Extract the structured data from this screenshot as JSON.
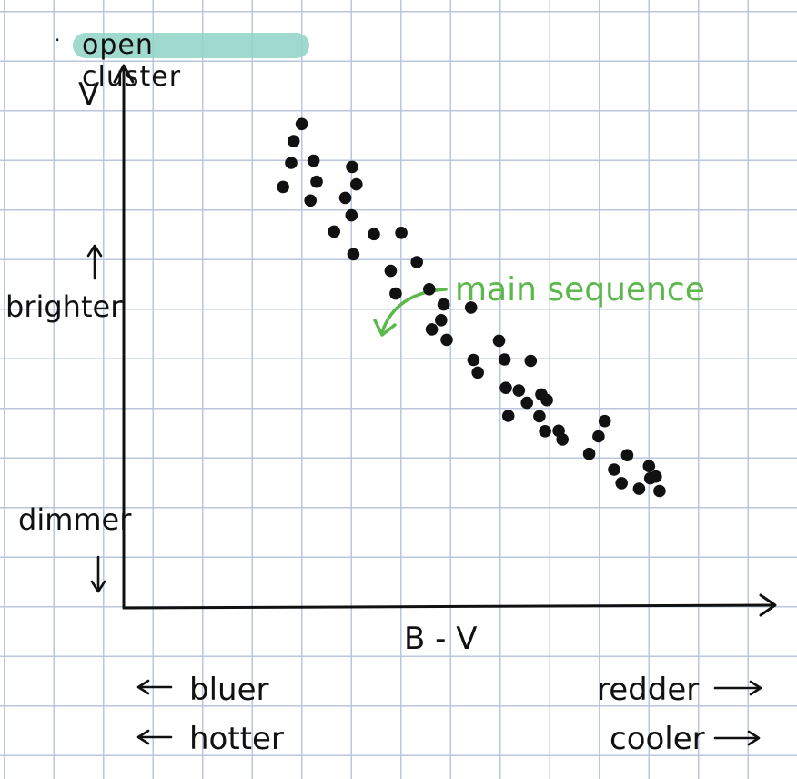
{
  "title_bullet": "·",
  "title": "open cluster",
  "y_axis_label": "V",
  "x_axis_label": "B - V",
  "y_up_label": "brighter",
  "y_down_label": "dimmer",
  "x_left_labels": [
    "bluer",
    "hotter"
  ],
  "x_right_labels": [
    "redder",
    "cooler"
  ],
  "annotation": "main sequence",
  "colors": {
    "highlight": "#8fd3c6",
    "annotation": "#5bb84a",
    "ink": "#111111",
    "grid": "#b9c6de"
  },
  "icons": {
    "up_arrow": "up-arrow-icon",
    "down_arrow": "down-arrow-icon",
    "left_arrow": "left-arrow-icon",
    "right_arrow": "right-arrow-icon"
  },
  "chart_data": {
    "type": "scatter",
    "title": "open cluster",
    "xlabel": "B - V",
    "ylabel": "V",
    "xlim": [
      0,
      100
    ],
    "ylim": [
      0,
      100
    ],
    "y_inverted": true,
    "grid": true,
    "series": [
      {
        "points": [
          [
            28.6,
            3.4
          ],
          [
            27.3,
            7.3
          ],
          [
            26.9,
            12.3
          ],
          [
            30.5,
            11.8
          ],
          [
            36.7,
            13.2
          ],
          [
            25.6,
            17.8
          ],
          [
            31.0,
            16.6
          ],
          [
            37.4,
            17.2
          ],
          [
            30.0,
            20.9
          ],
          [
            35.6,
            20.3
          ],
          [
            36.6,
            24.3
          ],
          [
            33.8,
            28.0
          ],
          [
            40.2,
            28.6
          ],
          [
            44.6,
            28.3
          ],
          [
            36.9,
            33.2
          ],
          [
            47.1,
            35.0
          ],
          [
            42.9,
            37.0
          ],
          [
            49.1,
            41.2
          ],
          [
            43.7,
            42.2
          ],
          [
            51.4,
            44.7
          ],
          [
            55.8,
            45.4
          ],
          [
            51.0,
            48.3
          ],
          [
            49.5,
            50.4
          ],
          [
            51.9,
            52.8
          ],
          [
            60.3,
            53.0
          ],
          [
            56.2,
            57.4
          ],
          [
            61.2,
            57.3
          ],
          [
            65.4,
            57.6
          ],
          [
            56.9,
            60.3
          ],
          [
            61.4,
            63.8
          ],
          [
            63.5,
            64.4
          ],
          [
            67.1,
            65.3
          ],
          [
            64.8,
            67.2
          ],
          [
            68.0,
            66.6
          ],
          [
            61.8,
            70.2
          ],
          [
            66.8,
            70.3
          ],
          [
            67.7,
            73.7
          ],
          [
            69.9,
            73.6
          ],
          [
            77.3,
            71.4
          ],
          [
            76.3,
            74.9
          ],
          [
            70.5,
            75.6
          ],
          [
            74.8,
            78.9
          ],
          [
            80.9,
            79.2
          ],
          [
            84.4,
            81.7
          ],
          [
            78.8,
            82.5
          ],
          [
            84.6,
            84.5
          ],
          [
            80.0,
            85.6
          ],
          [
            86.1,
            87.4
          ],
          [
            85.5,
            84.1
          ],
          [
            82.8,
            86.9
          ]
        ]
      }
    ],
    "annotations": [
      {
        "text": "main sequence",
        "points_to": [
          51.0,
          44.0
        ]
      }
    ]
  }
}
